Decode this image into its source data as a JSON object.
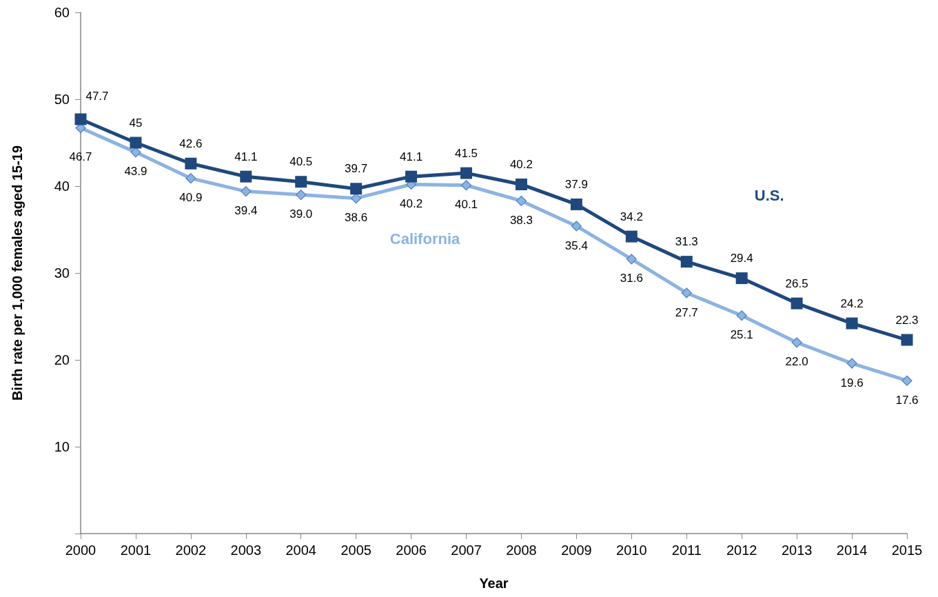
{
  "chart_data": {
    "type": "line",
    "xlabel": "Year",
    "ylabel": "Birth rate per 1,000 females aged 15-19",
    "categories": [
      "2000",
      "2001",
      "2002",
      "2003",
      "2004",
      "2005",
      "2006",
      "2007",
      "2008",
      "2009",
      "2010",
      "2011",
      "2012",
      "2013",
      "2014",
      "2015"
    ],
    "series": [
      {
        "name": "U.S.",
        "color": "#1f497d",
        "marker": "square",
        "values": [
          47.7,
          45,
          42.6,
          41.1,
          40.5,
          39.7,
          41.1,
          41.5,
          40.2,
          37.9,
          34.2,
          31.3,
          29.4,
          26.5,
          24.2,
          22.3
        ],
        "value_labels": [
          "47.7",
          "45",
          "42.6",
          "41.1",
          "40.5",
          "39.7",
          "41.1",
          "41.5",
          "40.2",
          "37.9",
          "34.2",
          "31.3",
          "29.4",
          "26.5",
          "24.2",
          "22.3"
        ]
      },
      {
        "name": "California",
        "color": "#8db3e2",
        "marker": "diamond",
        "values": [
          46.7,
          43.9,
          40.9,
          39.4,
          39.0,
          38.6,
          40.2,
          40.1,
          38.3,
          35.4,
          31.6,
          27.7,
          25.1,
          22.0,
          19.6,
          17.6
        ],
        "value_labels": [
          "46.7",
          "43.9",
          "40.9",
          "39.4",
          "39.0",
          "38.6",
          "40.2",
          "40.1",
          "38.3",
          "35.4",
          "31.6",
          "27.7",
          "25.1",
          "22.0",
          "19.6",
          "17.6"
        ]
      }
    ],
    "ylim": [
      0,
      60
    ],
    "yticks": [
      {
        "value": 0,
        "label": null
      },
      10,
      20,
      30,
      40,
      50,
      60
    ],
    "grid": false,
    "legend": false,
    "line_style": "solid"
  }
}
